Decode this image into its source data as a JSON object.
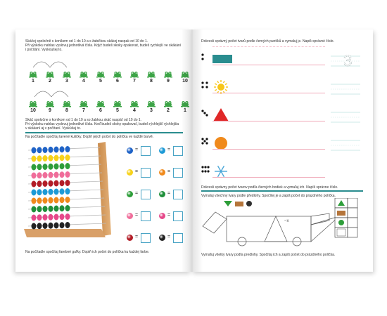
{
  "left_page": {
    "intro_lines": [
      "Skáčej spoločně s koníkem od 1 do 10 a s žabičkou skákej naspak od 10 do 1.",
      "Při výskoku nahlas vyslovuj jednotlivá čísla. Když budeš skoky opakovat, budeš rychlejší ve skákání",
      "i počítání. Vyskoušej to."
    ],
    "forward_numbers": [
      "1",
      "2",
      "3",
      "4",
      "5",
      "6",
      "7",
      "8",
      "9",
      "10"
    ],
    "backward_numbers": [
      "10",
      "9",
      "8",
      "7",
      "6",
      "5",
      "4",
      "3",
      "2",
      "1"
    ],
    "instruction2_lines": [
      "Skáč spoločne s koníkom od 1 do 10 a so žabkou skáč naspäť od 10 do 1.",
      "Pri výskoku nahlas vyslovuj jednotlivé čísla. Keď budeš skoky opakovať, budeš rýchlejší/ rýchlejšia",
      "v skákaní aj v počítaní. Vyskúšaj to."
    ],
    "abacus_instruction": "Na počítadle spočítaj tavené kuličky. Doplň jejich počet do políčka ve každé barvě.",
    "ball_colors": [
      "#1f63c7",
      "#1e9ad6",
      "#f7d21a",
      "#f08a1c",
      "#2e9e3a",
      "#1f8f3a",
      "#f06d9a",
      "#e6498a",
      "#b31d27",
      "#222222"
    ],
    "bottom_instruction": "Na počítadle spočítaj farebné guľky. Doplň ich počet do políčka ku každej farbe.",
    "equals": "="
  },
  "right_page": {
    "instruction1": "Dokresli správný počet tvarů podle černých puntíků a vymaluj je. Napiš správné číslo.",
    "trace_digit": "3",
    "dot_counts": [
      2,
      4,
      3,
      5,
      6
    ],
    "instruction2": "Dokresli správny počet tvarov podľa čierných bodiek a vymaľuj ich. Napíš správne číslo.",
    "instruction3": "Vymaluj všechny tvary podle předlohy. Spočítej je a zapiš počet do prázdného políčka.",
    "instruction4": "Vymaľuj všetky tvary podľa predlohy. Spočítaj ich a zapíš počet do prázdného políčka."
  },
  "colors": {
    "teal": "#2a8d8f",
    "frog_green": "#3da447",
    "sun_yellow": "#f7c61a",
    "triangle_red": "#e02828",
    "circle_orange": "#f08a1c",
    "snow_blue": "#4aa6d8"
  }
}
